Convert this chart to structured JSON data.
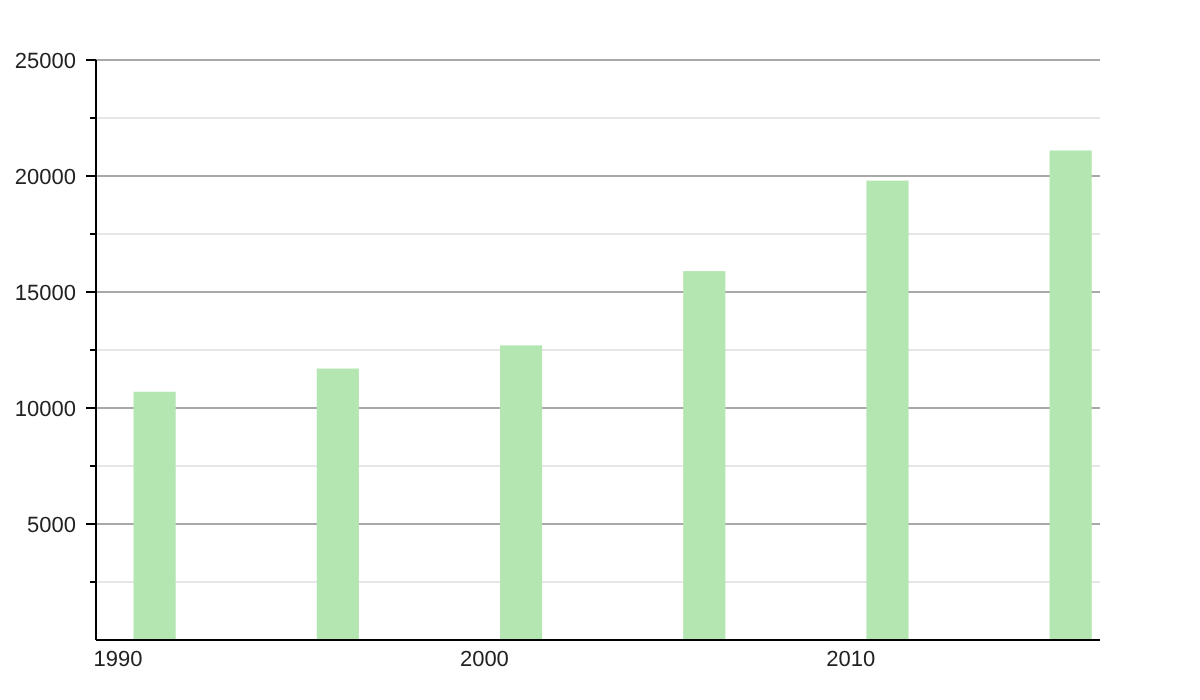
{
  "chart_data": {
    "type": "bar",
    "x": [
      1991,
      1996,
      2001,
      2006,
      2011,
      2016
    ],
    "values": [
      10700,
      11700,
      12700,
      15900,
      19800,
      21100
    ],
    "color": "#b3e6b0",
    "xlim": [
      1989.4,
      2016.8
    ],
    "xticks": [
      1990,
      2000,
      2010
    ],
    "ylim": [
      0,
      25000
    ],
    "yticks": [
      {
        "value": 2500,
        "label": null
      },
      5000,
      {
        "value": 7500,
        "label": null
      },
      10000,
      {
        "value": 12500,
        "label": null
      },
      15000,
      {
        "value": 17500,
        "label": null
      },
      20000,
      {
        "value": 22500,
        "label": null
      },
      25000
    ],
    "grid": "y"
  }
}
